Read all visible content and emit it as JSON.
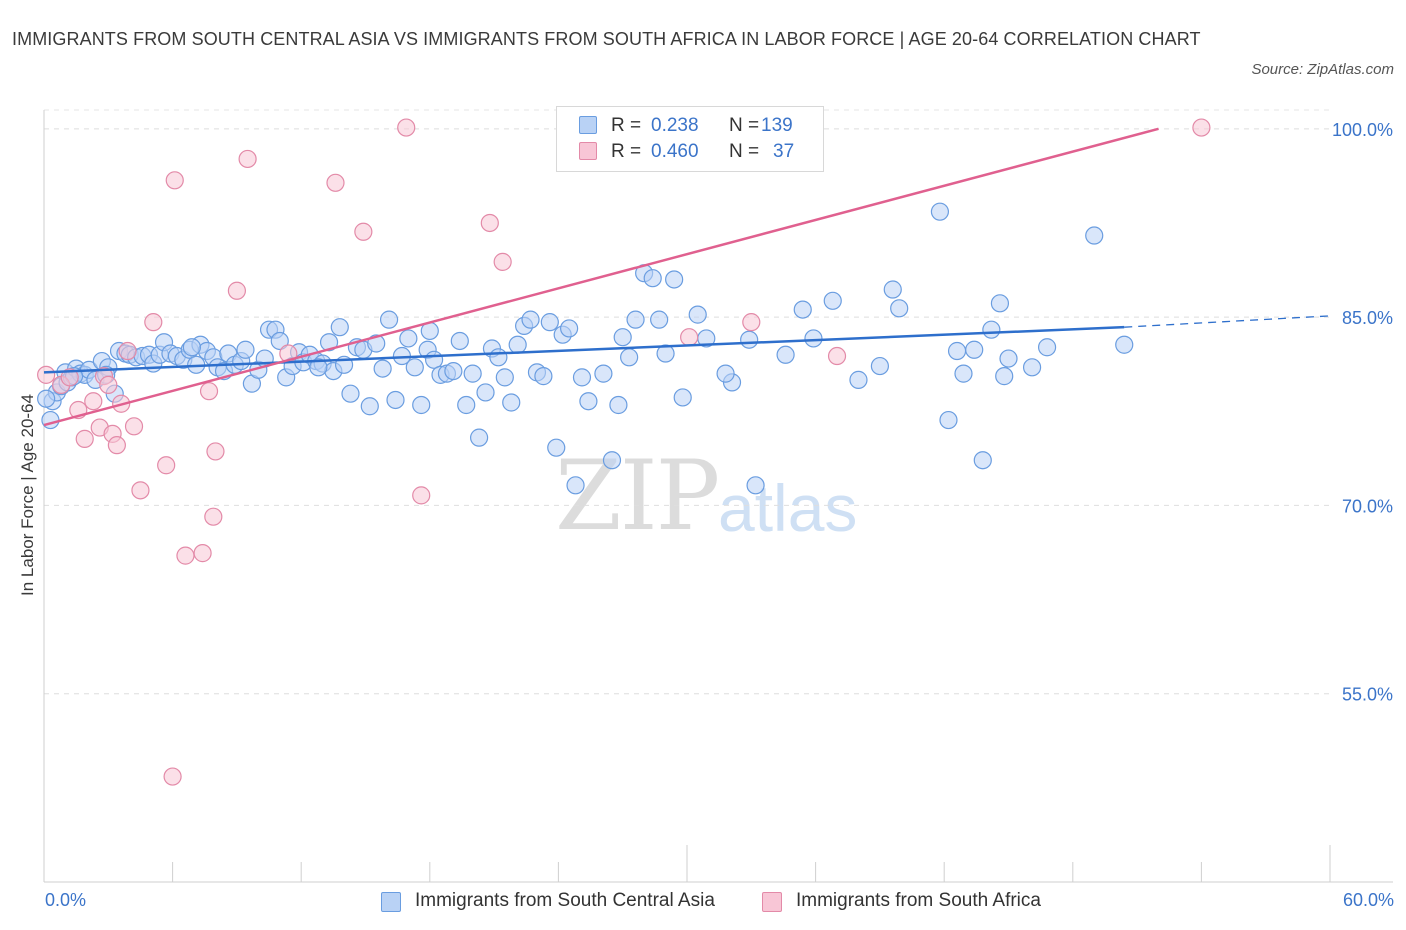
{
  "chart_data": {
    "type": "scatter",
    "title": "IMMIGRANTS FROM SOUTH CENTRAL ASIA VS IMMIGRANTS FROM SOUTH AFRICA IN LABOR FORCE | AGE 20-64 CORRELATION CHART",
    "source": "Source: ZipAtlas.com",
    "xlabel": "",
    "ylabel": "In Labor Force | Age 20-64",
    "xlim": [
      0,
      60
    ],
    "ylim": [
      40,
      101.5
    ],
    "x_tick_labels": [
      "0.0%",
      "60.0%"
    ],
    "y_ticks": [
      55,
      70,
      85,
      100
    ],
    "y_tick_labels": [
      "55.0%",
      "70.0%",
      "85.0%",
      "100.0%"
    ],
    "grid": true,
    "legend": {
      "placement": "top-center",
      "entries": [
        {
          "r_label": "R =",
          "r_value": "0.238",
          "n_label": "N =",
          "n_value": "139"
        },
        {
          "r_label": "R =",
          "r_value": "0.460",
          "n_label": "N =",
          "n_value": "37"
        }
      ]
    },
    "series": [
      {
        "name": "Immigrants from South Central Asia",
        "color": "#6a9de0",
        "fill": "#b9d2f5",
        "line_color": "#2e6fcc",
        "trend": {
          "x0": 0,
          "y0": 80.6,
          "x1": 50.4,
          "y1": 84.2,
          "dashed_to_x": 60,
          "dashed_to_y": 85.1
        },
        "points": [
          [
            0.3,
            76.8
          ],
          [
            0.4,
            78.3
          ],
          [
            0.6,
            79.0
          ],
          [
            0.8,
            79.5
          ],
          [
            1.0,
            80.6
          ],
          [
            1.1,
            79.8
          ],
          [
            1.3,
            80.2
          ],
          [
            1.5,
            80.9
          ],
          [
            1.7,
            80.5
          ],
          [
            1.9,
            80.4
          ],
          [
            2.1,
            80.8
          ],
          [
            2.4,
            80.0
          ],
          [
            2.7,
            81.5
          ],
          [
            3.0,
            81.0
          ],
          [
            3.3,
            78.9
          ],
          [
            3.5,
            82.3
          ],
          [
            3.8,
            82.1
          ],
          [
            4.0,
            82.0
          ],
          [
            4.3,
            81.8
          ],
          [
            4.6,
            81.9
          ],
          [
            4.9,
            82.0
          ],
          [
            5.1,
            81.3
          ],
          [
            5.4,
            82.0
          ],
          [
            5.6,
            83.0
          ],
          [
            5.9,
            82.1
          ],
          [
            6.2,
            81.9
          ],
          [
            6.5,
            81.6
          ],
          [
            6.8,
            82.4
          ],
          [
            7.1,
            81.2
          ],
          [
            7.3,
            82.8
          ],
          [
            7.6,
            82.3
          ],
          [
            7.9,
            81.8
          ],
          [
            8.1,
            81.0
          ],
          [
            8.4,
            80.7
          ],
          [
            8.6,
            82.1
          ],
          [
            8.9,
            81.2
          ],
          [
            9.2,
            81.5
          ],
          [
            9.4,
            82.4
          ],
          [
            9.7,
            79.7
          ],
          [
            10.0,
            80.8
          ],
          [
            10.3,
            81.7
          ],
          [
            10.5,
            84.0
          ],
          [
            10.8,
            84.0
          ],
          [
            11.0,
            83.1
          ],
          [
            11.3,
            80.2
          ],
          [
            11.6,
            81.1
          ],
          [
            11.9,
            82.2
          ],
          [
            12.1,
            81.4
          ],
          [
            12.4,
            82.0
          ],
          [
            12.7,
            81.5
          ],
          [
            13.0,
            81.3
          ],
          [
            13.3,
            83.0
          ],
          [
            13.5,
            80.7
          ],
          [
            13.8,
            84.2
          ],
          [
            14.0,
            81.2
          ],
          [
            14.3,
            78.9
          ],
          [
            14.6,
            82.6
          ],
          [
            14.9,
            82.4
          ],
          [
            15.2,
            77.9
          ],
          [
            15.5,
            82.9
          ],
          [
            15.8,
            80.9
          ],
          [
            16.1,
            84.8
          ],
          [
            16.4,
            78.4
          ],
          [
            16.7,
            81.9
          ],
          [
            17.0,
            83.3
          ],
          [
            17.3,
            81.0
          ],
          [
            17.6,
            78.0
          ],
          [
            17.9,
            82.4
          ],
          [
            18.2,
            81.6
          ],
          [
            18.5,
            80.4
          ],
          [
            18.8,
            80.5
          ],
          [
            19.1,
            80.7
          ],
          [
            19.4,
            83.1
          ],
          [
            19.7,
            78.0
          ],
          [
            20.0,
            80.5
          ],
          [
            20.3,
            75.4
          ],
          [
            20.6,
            79.0
          ],
          [
            20.9,
            82.5
          ],
          [
            21.2,
            81.8
          ],
          [
            21.5,
            80.2
          ],
          [
            21.8,
            78.2
          ],
          [
            22.1,
            82.8
          ],
          [
            22.4,
            84.3
          ],
          [
            22.7,
            84.8
          ],
          [
            23.0,
            80.6
          ],
          [
            23.3,
            80.3
          ],
          [
            23.6,
            84.6
          ],
          [
            23.9,
            74.6
          ],
          [
            24.2,
            83.6
          ],
          [
            24.5,
            84.1
          ],
          [
            24.8,
            71.6
          ],
          [
            25.1,
            80.2
          ],
          [
            25.4,
            78.3
          ],
          [
            26.1,
            80.5
          ],
          [
            26.5,
            73.6
          ],
          [
            27.0,
            83.4
          ],
          [
            27.3,
            81.8
          ],
          [
            27.6,
            84.8
          ],
          [
            28.0,
            88.5
          ],
          [
            28.4,
            88.1
          ],
          [
            28.7,
            84.8
          ],
          [
            29.0,
            82.1
          ],
          [
            29.4,
            88.0
          ],
          [
            29.8,
            78.6
          ],
          [
            30.5,
            85.2
          ],
          [
            30.9,
            83.3
          ],
          [
            32.1,
            79.8
          ],
          [
            32.9,
            83.2
          ],
          [
            33.2,
            71.6
          ],
          [
            34.6,
            82.0
          ],
          [
            35.4,
            85.6
          ],
          [
            35.9,
            83.3
          ],
          [
            36.8,
            86.3
          ],
          [
            38.0,
            80.0
          ],
          [
            39.0,
            81.1
          ],
          [
            39.6,
            87.2
          ],
          [
            39.9,
            85.7
          ],
          [
            41.8,
            93.4
          ],
          [
            42.2,
            76.8
          ],
          [
            42.6,
            82.3
          ],
          [
            42.9,
            80.5
          ],
          [
            43.4,
            82.4
          ],
          [
            43.8,
            73.6
          ],
          [
            44.6,
            86.1
          ],
          [
            44.8,
            80.3
          ],
          [
            45.0,
            81.7
          ],
          [
            46.1,
            81.0
          ],
          [
            46.8,
            82.6
          ],
          [
            49.0,
            91.5
          ],
          [
            50.4,
            82.8
          ],
          [
            0.1,
            78.5
          ],
          [
            1.4,
            80.3
          ],
          [
            2.9,
            80.4
          ],
          [
            6.9,
            82.6
          ],
          [
            12.8,
            81.0
          ],
          [
            18.0,
            83.9
          ],
          [
            26.8,
            78.0
          ],
          [
            31.8,
            80.5
          ],
          [
            44.2,
            84.0
          ]
        ]
      },
      {
        "name": "Immigrants from South Africa",
        "color": "#e38aa8",
        "fill": "#f8c6d6",
        "line_color": "#e0608f",
        "trend": {
          "x0": 0,
          "y0": 76.4,
          "x1": 52.0,
          "y1": 100.0
        },
        "points": [
          [
            0.1,
            80.4
          ],
          [
            0.8,
            79.6
          ],
          [
            1.2,
            80.2
          ],
          [
            1.6,
            77.6
          ],
          [
            1.9,
            75.3
          ],
          [
            2.3,
            78.3
          ],
          [
            2.6,
            76.2
          ],
          [
            2.8,
            80.3
          ],
          [
            3.0,
            79.6
          ],
          [
            3.2,
            75.7
          ],
          [
            3.4,
            74.8
          ],
          [
            3.6,
            78.1
          ],
          [
            3.9,
            82.3
          ],
          [
            4.2,
            76.3
          ],
          [
            4.5,
            71.2
          ],
          [
            5.1,
            84.6
          ],
          [
            5.7,
            73.2
          ],
          [
            6.0,
            48.4
          ],
          [
            6.1,
            95.9
          ],
          [
            6.6,
            66.0
          ],
          [
            7.4,
            66.2
          ],
          [
            7.7,
            79.1
          ],
          [
            7.9,
            69.1
          ],
          [
            8.0,
            74.3
          ],
          [
            9.0,
            87.1
          ],
          [
            9.5,
            97.6
          ],
          [
            11.4,
            82.1
          ],
          [
            13.6,
            95.7
          ],
          [
            14.9,
            91.8
          ],
          [
            16.9,
            100.1
          ],
          [
            17.6,
            70.8
          ],
          [
            20.8,
            92.5
          ],
          [
            21.4,
            89.4
          ],
          [
            30.1,
            83.4
          ],
          [
            33.0,
            84.6
          ],
          [
            37.0,
            81.9
          ],
          [
            54.0,
            100.1
          ]
        ]
      }
    ]
  },
  "watermark": {
    "zip": "ZIP",
    "atlas": "atlas"
  }
}
